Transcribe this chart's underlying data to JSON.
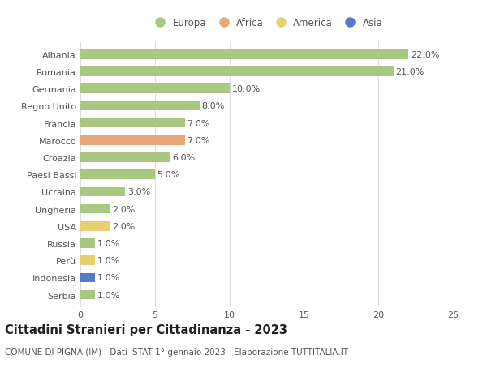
{
  "countries": [
    "Albania",
    "Romania",
    "Germania",
    "Regno Unito",
    "Francia",
    "Marocco",
    "Croazia",
    "Paesi Bassi",
    "Ucraina",
    "Ungheria",
    "USA",
    "Russia",
    "Perù",
    "Indonesia",
    "Serbia"
  ],
  "values": [
    22.0,
    21.0,
    10.0,
    8.0,
    7.0,
    7.0,
    6.0,
    5.0,
    3.0,
    2.0,
    2.0,
    1.0,
    1.0,
    1.0,
    1.0
  ],
  "continents": [
    "Europa",
    "Europa",
    "Europa",
    "Europa",
    "Europa",
    "Africa",
    "Europa",
    "Europa",
    "Europa",
    "Europa",
    "America",
    "Europa",
    "America",
    "Asia",
    "Europa"
  ],
  "colors": {
    "Europa": "#a8c882",
    "Africa": "#e8a878",
    "America": "#e8d070",
    "Asia": "#5878c8"
  },
  "xlim": [
    0,
    25
  ],
  "xticks": [
    0,
    5,
    10,
    15,
    20,
    25
  ],
  "title": "Cittadini Stranieri per Cittadinanza - 2023",
  "subtitle": "COMUNE DI PIGNA (IM) - Dati ISTAT 1° gennaio 2023 - Elaborazione TUTTITALIA.IT",
  "background_color": "#ffffff",
  "grid_color": "#dddddd",
  "bar_height": 0.55,
  "label_fontsize": 8.0,
  "value_label_fontsize": 8.0,
  "title_fontsize": 10.5,
  "subtitle_fontsize": 7.5,
  "legend_fontsize": 8.5
}
